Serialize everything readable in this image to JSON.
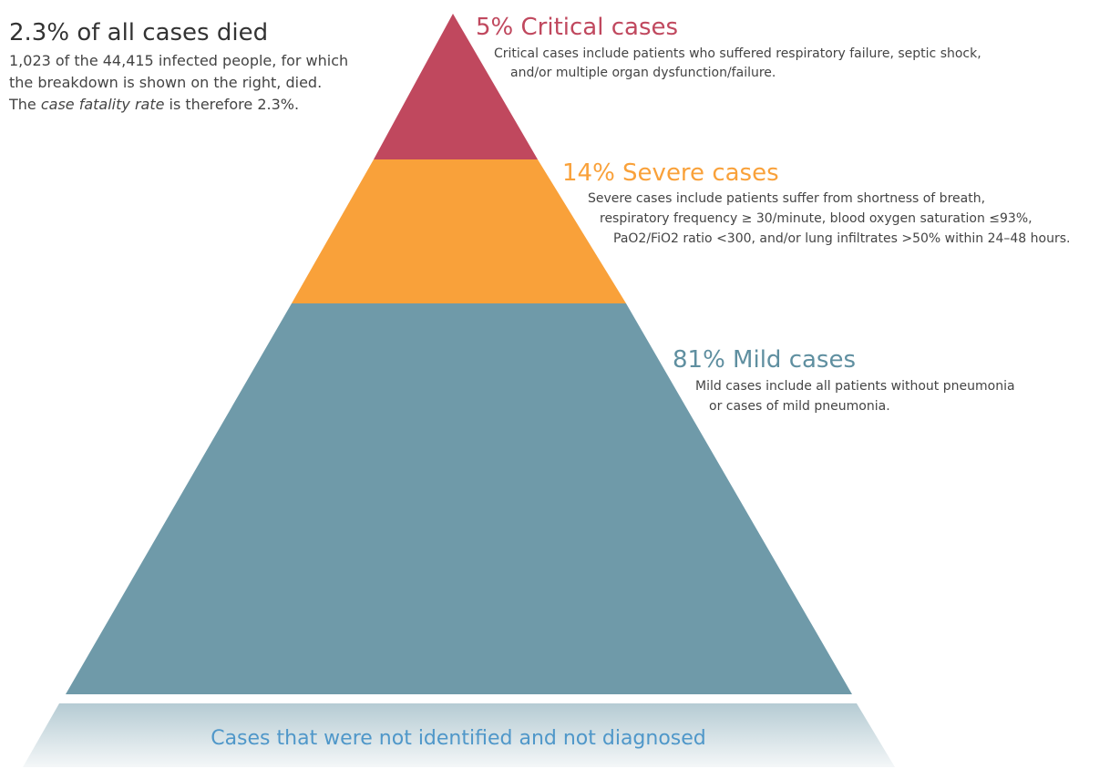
{
  "summary": {
    "title": "2.3% of all cases died",
    "lines": [
      "1,023 of the 44,415 infected people, for which",
      "the breakdown is shown on the right, died."
    ],
    "last_line": [
      "The ",
      "case fatality rate",
      " is therefore 2.3%."
    ]
  },
  "tiers": [
    {
      "title": "5% Critical cases",
      "lines": [
        "Critical cases include patients who suffered respiratory failure, septic shock,",
        "and/or multiple organ dysfunction/failure."
      ]
    },
    {
      "title": "14% Severe cases",
      "lines": [
        "Severe cases include patients suffer from shortness of breath,",
        "respiratory frequency ≥ 30/minute, blood oxygen saturation ≤93%,",
        "PaO2/FiO2 ratio <300, and/or lung infiltrates >50% within 24–48 hours."
      ]
    },
    {
      "title": "81% Mild cases",
      "lines": [
        "Mild cases include all patients without pneumonia",
        "or cases of mild pneumonia."
      ]
    }
  ],
  "base": "Cases that were not identified and not diagnosed"
}
